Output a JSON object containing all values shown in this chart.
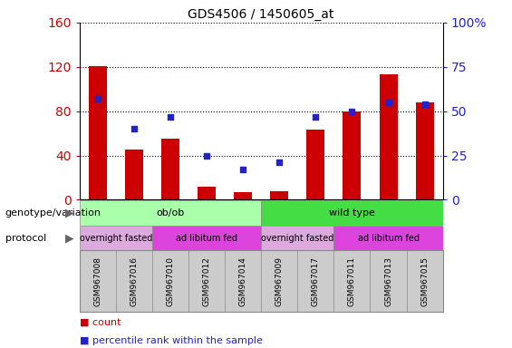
{
  "title": "GDS4506 / 1450605_at",
  "samples": [
    "GSM967008",
    "GSM967016",
    "GSM967010",
    "GSM967012",
    "GSM967014",
    "GSM967009",
    "GSM967017",
    "GSM967011",
    "GSM967013",
    "GSM967015"
  ],
  "counts": [
    121,
    45,
    55,
    12,
    7,
    8,
    63,
    80,
    113,
    88
  ],
  "percentile_ranks": [
    57,
    40,
    47,
    25,
    17,
    21,
    47,
    50,
    55,
    54
  ],
  "ylim_left": [
    0,
    160
  ],
  "ylim_right": [
    0,
    100
  ],
  "yticks_left": [
    0,
    40,
    80,
    120,
    160
  ],
  "yticks_right": [
    0,
    25,
    50,
    75,
    100
  ],
  "bar_color": "#cc0000",
  "dot_color": "#2222cc",
  "grid_color": "#000000",
  "bg_color": "#ffffff",
  "tick_label_color_left": "#cc0000",
  "tick_label_color_right": "#2222cc",
  "xtick_bg_color": "#cccccc",
  "genotype_groups": [
    {
      "label": "ob/ob",
      "start": 0,
      "end": 5,
      "color": "#aaffaa"
    },
    {
      "label": "wild type",
      "start": 5,
      "end": 10,
      "color": "#44dd44"
    }
  ],
  "protocol_groups": [
    {
      "label": "overnight fasted",
      "start": 0,
      "end": 2,
      "color": "#ddaadd"
    },
    {
      "label": "ad libitum fed",
      "start": 2,
      "end": 5,
      "color": "#dd44dd"
    },
    {
      "label": "overnight fasted",
      "start": 5,
      "end": 7,
      "color": "#ddaadd"
    },
    {
      "label": "ad libitum fed",
      "start": 7,
      "end": 10,
      "color": "#dd44dd"
    }
  ],
  "legend_items": [
    {
      "label": "count",
      "color": "#cc0000"
    },
    {
      "label": "percentile rank within the sample",
      "color": "#2222cc"
    }
  ],
  "genotype_label": "genotype/variation",
  "protocol_label": "protocol",
  "right_ytick_labels": [
    "0",
    "25",
    "50",
    "75",
    "100%"
  ]
}
